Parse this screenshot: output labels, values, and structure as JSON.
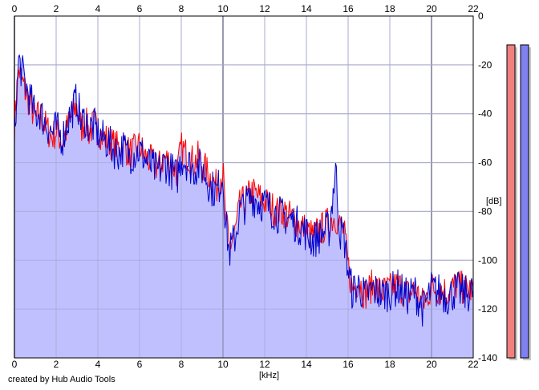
{
  "footer": {
    "credit": "created by Hub Audio Tools"
  },
  "chart_data": {
    "type": "area",
    "xlabel": "[kHz]",
    "ylabel": "[dB]",
    "xlim": [
      0,
      22
    ],
    "ylim": [
      -140,
      0
    ],
    "x_ticks": [
      0,
      2,
      4,
      6,
      8,
      10,
      12,
      14,
      16,
      18,
      20,
      22
    ],
    "y_ticks": [
      0,
      -20,
      -40,
      -60,
      -80,
      -100,
      -120,
      -140
    ],
    "grid": true,
    "x_ticks_top": true,
    "colors": {
      "red_channel": "#ff0000",
      "blue_channel": "#0000cc",
      "fill": "#c0c0ff",
      "grid": "#b4b4b4",
      "grid_major": "#888888",
      "bar_red": "#f08080",
      "bar_blue": "#8080f0"
    },
    "series": [
      {
        "color": "#ff0000",
        "x": [
          0,
          0.2,
          0.4,
          0.6,
          0.8,
          1.0,
          1.2,
          1.5,
          1.8,
          2.0,
          2.3,
          2.6,
          2.8,
          3.0,
          3.2,
          3.4,
          3.6,
          3.8,
          4.0,
          4.2,
          4.5,
          4.8,
          5.0,
          5.2,
          5.5,
          5.8,
          6.0,
          6.3,
          6.6,
          6.9,
          7.2,
          7.5,
          7.8,
          8.0,
          8.3,
          8.6,
          8.8,
          9.1,
          9.4,
          9.7,
          10.0,
          10.1,
          10.3,
          10.6,
          10.8,
          11.1,
          11.4,
          11.7,
          12.0,
          12.3,
          12.6,
          12.9,
          13.2,
          13.5,
          13.8,
          14.0,
          14.3,
          14.6,
          14.9,
          15.1,
          15.4,
          15.6,
          15.8,
          16.0,
          16.2,
          16.5,
          16.8,
          17.2,
          17.6,
          18.0,
          18.4,
          18.8,
          19.2,
          19.6,
          20.0,
          20.4,
          20.8,
          21.2,
          21.6,
          22.0
        ],
        "values": [
          -45,
          -22,
          -28,
          -33,
          -37,
          -43,
          -40,
          -45,
          -50,
          -47,
          -52,
          -44,
          -40,
          -37,
          -46,
          -43,
          -48,
          -44,
          -46,
          -49,
          -51,
          -53,
          -54,
          -52,
          -56,
          -55,
          -53,
          -58,
          -60,
          -62,
          -58,
          -60,
          -64,
          -54,
          -57,
          -60,
          -58,
          -62,
          -66,
          -70,
          -63,
          -80,
          -95,
          -88,
          -78,
          -75,
          -72,
          -74,
          -76,
          -78,
          -80,
          -80,
          -82,
          -84,
          -86,
          -88,
          -90,
          -88,
          -86,
          -84,
          -82,
          -86,
          -88,
          -102,
          -112,
          -108,
          -114,
          -110,
          -113,
          -112,
          -110,
          -114,
          -112,
          -118,
          -111,
          -112,
          -113,
          -110,
          -112,
          -112
        ]
      },
      {
        "color": "#0000cc",
        "x": [
          0,
          0.2,
          0.4,
          0.6,
          0.8,
          1.0,
          1.2,
          1.5,
          1.8,
          2.0,
          2.3,
          2.6,
          2.8,
          3.0,
          3.2,
          3.4,
          3.6,
          3.8,
          4.0,
          4.2,
          4.5,
          4.8,
          5.0,
          5.2,
          5.5,
          5.8,
          6.0,
          6.3,
          6.6,
          6.9,
          7.2,
          7.5,
          7.8,
          8.0,
          8.3,
          8.6,
          8.8,
          9.1,
          9.4,
          9.7,
          10.0,
          10.1,
          10.3,
          10.6,
          10.8,
          11.1,
          11.4,
          11.7,
          12.0,
          12.3,
          12.6,
          12.9,
          13.2,
          13.5,
          13.8,
          14.0,
          14.3,
          14.6,
          14.9,
          15.1,
          15.4,
          15.6,
          15.8,
          16.0,
          16.2,
          16.5,
          16.8,
          17.2,
          17.6,
          18.0,
          18.4,
          18.8,
          19.2,
          19.6,
          20.0,
          20.4,
          20.8,
          21.2,
          21.6,
          22.0
        ],
        "values": [
          -48,
          -18,
          -24,
          -30,
          -35,
          -41,
          -39,
          -44,
          -48,
          -46,
          -50,
          -42,
          -38,
          -34,
          -44,
          -42,
          -46,
          -45,
          -48,
          -50,
          -52,
          -55,
          -56,
          -54,
          -57,
          -56,
          -55,
          -59,
          -62,
          -64,
          -60,
          -63,
          -66,
          -58,
          -60,
          -63,
          -61,
          -64,
          -70,
          -72,
          -65,
          -82,
          -97,
          -90,
          -80,
          -77,
          -74,
          -76,
          -77,
          -79,
          -81,
          -82,
          -83,
          -85,
          -87,
          -89,
          -92,
          -90,
          -88,
          -87,
          -62,
          -88,
          -90,
          -104,
          -113,
          -110,
          -115,
          -112,
          -114,
          -113,
          -111,
          -115,
          -113,
          -120,
          -112,
          -113,
          -115,
          -112,
          -114,
          -113
        ]
      }
    ],
    "channel_bars": [
      {
        "color": "#f08080",
        "level": 0.98
      },
      {
        "color": "#8080f0",
        "level": 0.98
      }
    ]
  }
}
